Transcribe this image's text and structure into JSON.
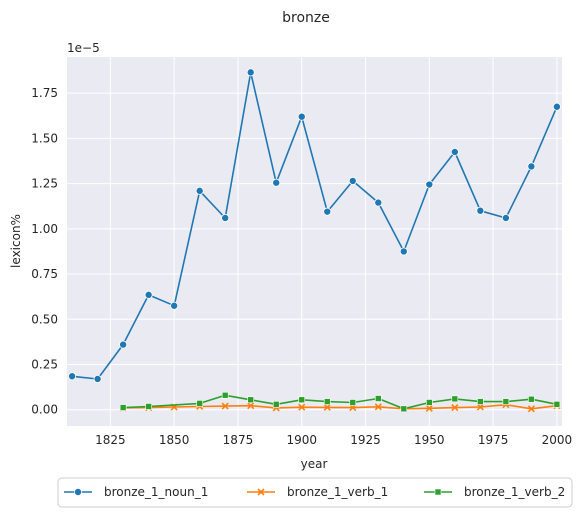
{
  "chart_data": {
    "type": "line",
    "title": "bronze",
    "xlabel": "year",
    "ylabel": "lexicon%",
    "y_offset_text": "1e−5",
    "xlim": [
      1808,
      2002
    ],
    "ylim": [
      -0.09,
      1.95
    ],
    "xticks": [
      1825,
      1850,
      1875,
      1900,
      1925,
      1950,
      1975,
      2000
    ],
    "yticks": [
      0.0,
      0.25,
      0.5,
      0.75,
      1.0,
      1.25,
      1.5,
      1.75
    ],
    "ytick_labels": [
      "0.00",
      "0.25",
      "0.50",
      "0.75",
      "1.00",
      "1.25",
      "1.50",
      "1.75"
    ],
    "grid": true,
    "legend_position": "bottom-center",
    "series": [
      {
        "name": "bronze_1_noun_1",
        "color": "#1f77b4",
        "marker": "circle",
        "x": [
          1810,
          1820,
          1830,
          1840,
          1850,
          1860,
          1870,
          1880,
          1890,
          1900,
          1910,
          1920,
          1930,
          1940,
          1950,
          1960,
          1970,
          1980,
          1990,
          2000
        ],
        "y": [
          0.185,
          0.17,
          0.36,
          0.635,
          0.575,
          1.21,
          1.06,
          1.865,
          1.255,
          1.62,
          1.095,
          1.265,
          1.145,
          0.875,
          1.245,
          1.425,
          1.1,
          1.06,
          1.345,
          1.675
        ]
      },
      {
        "name": "bronze_1_verb_1",
        "color": "#ff7f0e",
        "marker": "x",
        "x": [
          1830,
          1840,
          1850,
          1860,
          1870,
          1880,
          1890,
          1900,
          1910,
          1920,
          1930,
          1940,
          1950,
          1960,
          1970,
          1980,
          1990,
          2000
        ],
        "y": [
          0.01,
          0.012,
          0.015,
          0.018,
          0.02,
          0.022,
          0.01,
          0.014,
          0.013,
          0.012,
          0.016,
          0.005,
          0.008,
          0.012,
          0.015,
          0.028,
          0.005,
          0.022
        ]
      },
      {
        "name": "bronze_1_verb_2",
        "color": "#2ca02c",
        "marker": "square",
        "x": [
          1830,
          1840,
          1860,
          1870,
          1880,
          1890,
          1900,
          1910,
          1920,
          1930,
          1940,
          1950,
          1960,
          1970,
          1980,
          1990,
          2000
        ],
        "y": [
          0.012,
          0.018,
          0.035,
          0.08,
          0.055,
          0.03,
          0.055,
          0.045,
          0.04,
          0.062,
          0.005,
          0.04,
          0.06,
          0.045,
          0.045,
          0.058,
          0.03
        ]
      }
    ]
  }
}
